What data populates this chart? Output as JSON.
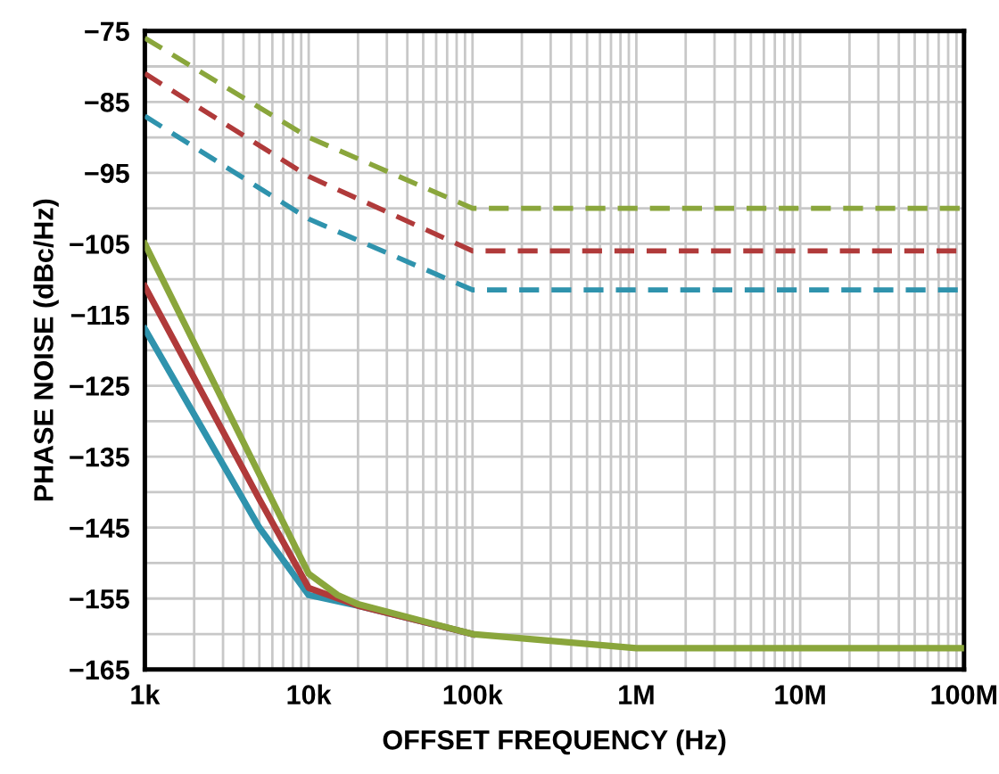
{
  "chart_data": {
    "type": "line",
    "xlabel": "OFFSET FREQUENCY (Hz)",
    "ylabel": "PHASE NOISE (dBc/Hz)",
    "log": "x",
    "xlim": [
      1000,
      100000000
    ],
    "xticks": [
      {
        "value": 1000,
        "label": "1k"
      },
      {
        "value": 10000,
        "label": "10k"
      },
      {
        "value": 100000,
        "label": "100k"
      },
      {
        "value": 1000000,
        "label": "1M"
      },
      {
        "value": 10000000,
        "label": "10M"
      },
      {
        "value": 100000000,
        "label": "100M"
      }
    ],
    "ylim": [
      -165,
      -75
    ],
    "yticks": [
      -165,
      -155,
      -145,
      -135,
      -125,
      -115,
      -105,
      -95,
      -85,
      -75
    ],
    "grid": true,
    "series": [
      {
        "color": "#8aa63c",
        "line_style": "dashed",
        "x": [
          1000,
          10000,
          100000,
          100000000
        ],
        "values": [
          -76,
          -90,
          -100,
          -100
        ]
      },
      {
        "color": "#b03a3a",
        "line_style": "dashed",
        "x": [
          1000,
          10000,
          100000,
          100000000
        ],
        "values": [
          -81,
          -95.5,
          -106,
          -106
        ]
      },
      {
        "color": "#2f93ad",
        "line_style": "dashed",
        "x": [
          1000,
          10000,
          100000,
          100000000
        ],
        "values": [
          -87,
          -101.5,
          -111.5,
          -111.5
        ]
      },
      {
        "color": "#2f93ad",
        "line_style": "solid",
        "x": [
          1000,
          5000,
          10000,
          20000,
          100000
        ],
        "values": [
          -117,
          -145,
          -154.5,
          -156,
          -160
        ]
      },
      {
        "color": "#b03a3a",
        "line_style": "solid",
        "x": [
          1000,
          5000,
          10000,
          20000,
          100000
        ],
        "values": [
          -111,
          -141,
          -153.5,
          -156,
          -160
        ]
      },
      {
        "color": "#8aa63c",
        "line_style": "solid",
        "x": [
          1000,
          5000,
          10000,
          15000,
          20000,
          100000,
          1000000,
          100000000
        ],
        "values": [
          -105,
          -137.5,
          -151.5,
          -154.5,
          -155.8,
          -160,
          -162,
          -162
        ]
      }
    ]
  }
}
